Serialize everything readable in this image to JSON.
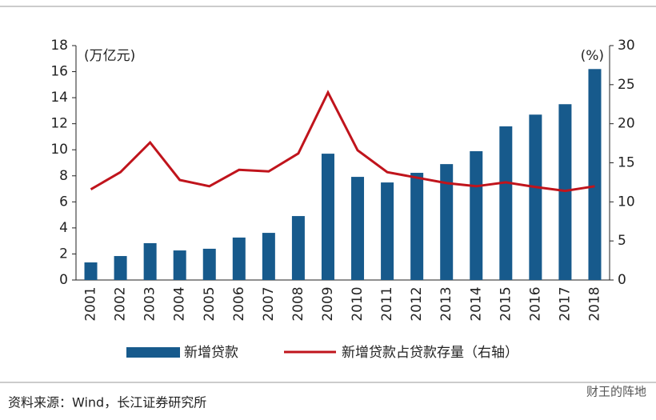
{
  "chart_data": {
    "type": "bar",
    "categories": [
      "2001",
      "2002",
      "2003",
      "2004",
      "2005",
      "2006",
      "2007",
      "2008",
      "2009",
      "2010",
      "2011",
      "2012",
      "2013",
      "2014",
      "2015",
      "2016",
      "2017",
      "2018"
    ],
    "series": [
      {
        "name": "新增贷款",
        "color": "#175a8c",
        "values": [
          1.35,
          1.84,
          2.83,
          2.27,
          2.4,
          3.26,
          3.62,
          4.91,
          9.7,
          7.92,
          7.49,
          8.23,
          8.9,
          9.89,
          11.8,
          12.7,
          13.5,
          16.2
        ]
      },
      {
        "name": "新增贷款占贷款存量（右轴）",
        "type": "line",
        "axis": "y2",
        "color": "#c0141c",
        "values": [
          11.6,
          13.8,
          17.6,
          12.8,
          12.0,
          14.1,
          13.9,
          16.2,
          24.0,
          16.6,
          13.8,
          13.1,
          12.4,
          12.0,
          12.5,
          11.9,
          11.4,
          12.0
        ]
      }
    ],
    "ylim": [
      0,
      18
    ],
    "yticks": [
      0,
      2,
      4,
      6,
      8,
      10,
      12,
      14,
      16,
      18
    ],
    "y2lim": [
      0,
      30
    ],
    "y2ticks": [
      0,
      5,
      10,
      15,
      20,
      25,
      30
    ],
    "y_unit": "(万亿元)",
    "y2_unit": "(%)",
    "grid": false
  },
  "source": "资料来源：Wind，长江证券研究所",
  "watermark": "财王的阵地"
}
